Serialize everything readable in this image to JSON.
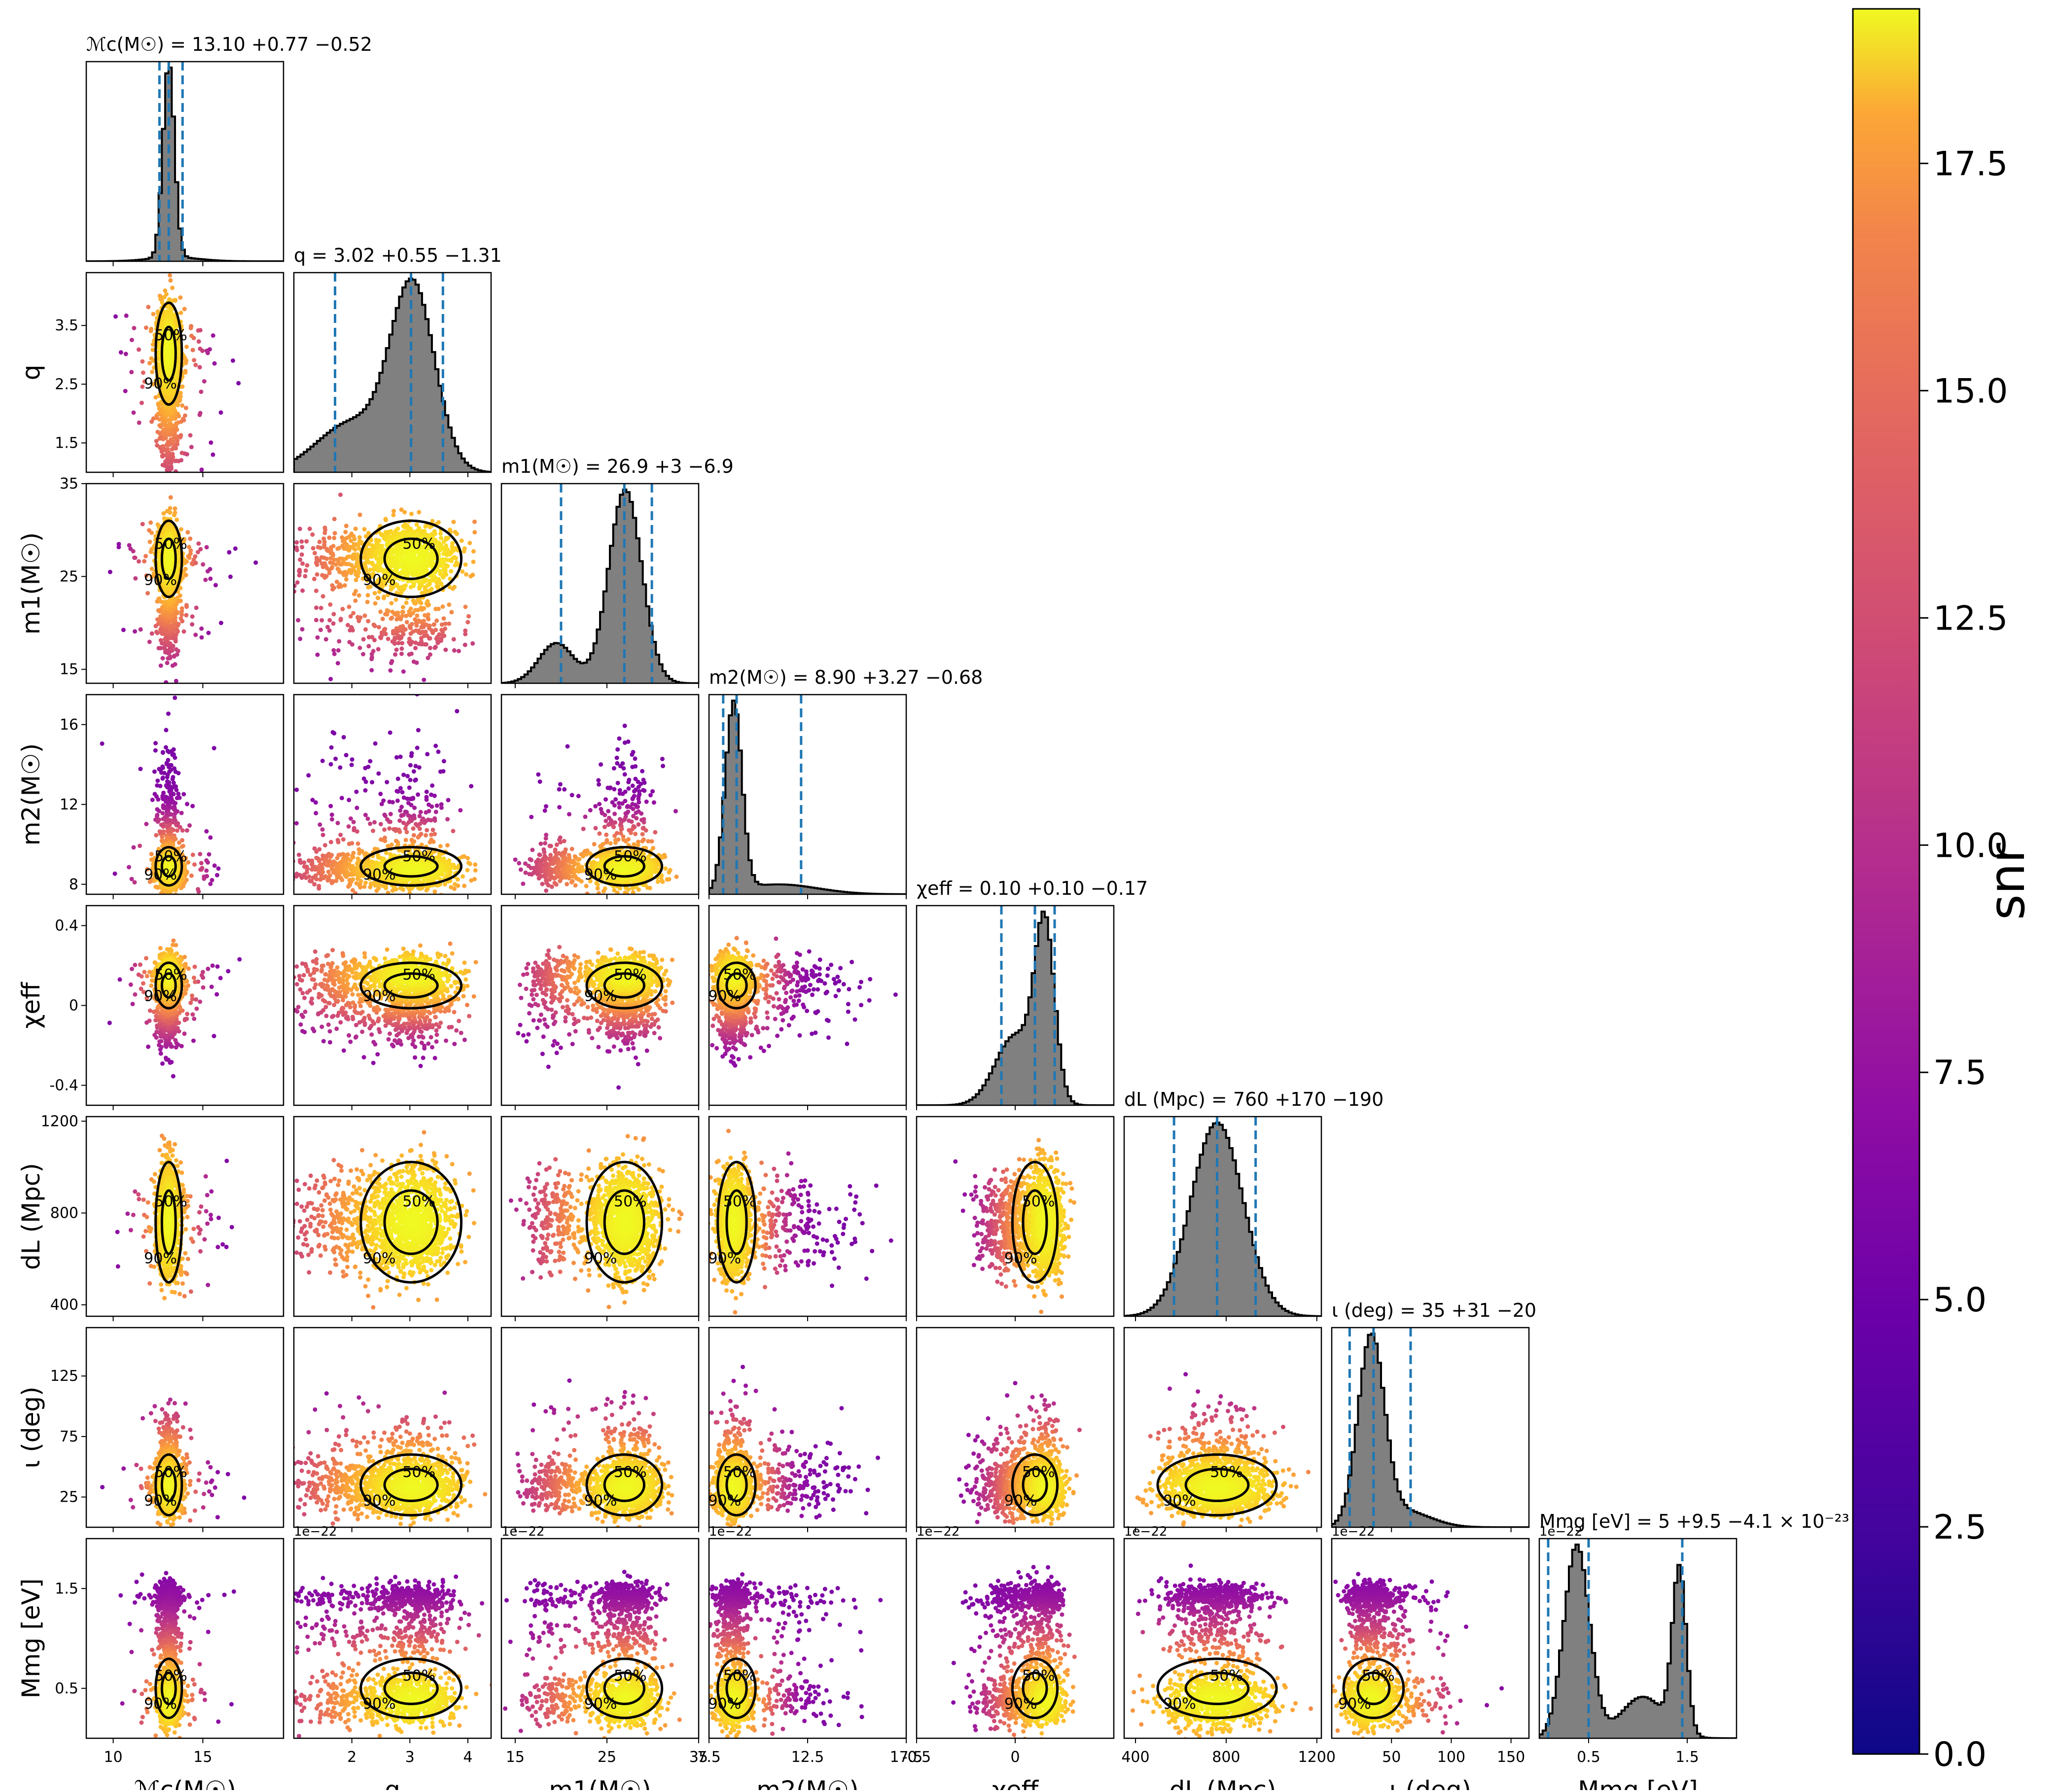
{
  "chart_data": {
    "type": "corner-plot",
    "parameters": [
      {
        "key": "mc",
        "label": "ℳc(M☉)",
        "range": [
          8.5,
          19.5
        ],
        "ticks": [
          10,
          15
        ],
        "title": "ℳc(M☉) = 13.10 +0.77 −0.52",
        "median": 13.1,
        "lo": 12.58,
        "hi": 13.87
      },
      {
        "key": "q",
        "label": "q",
        "range": [
          1.0,
          4.4
        ],
        "ticks": [
          2,
          3,
          4
        ],
        "ticks_left": [
          1.5,
          2.5,
          3.5
        ],
        "title": "q = 3.02 +0.55 −1.31",
        "median": 3.02,
        "lo": 1.71,
        "hi": 3.57
      },
      {
        "key": "m1",
        "label": "m1(M☉)",
        "range": [
          13.5,
          35
        ],
        "ticks": [
          15,
          25,
          35
        ],
        "title": "m1(M☉) = 26.9 +3 −6.9",
        "median": 26.9,
        "lo": 20.0,
        "hi": 29.9
      },
      {
        "key": "m2",
        "label": "m2(M☉)",
        "range": [
          7.5,
          17.5
        ],
        "ticks": [
          7.5,
          12.5,
          17.5
        ],
        "ticks_left": [
          8,
          12,
          16
        ],
        "title": "m2(M☉) = 8.90 +3.27 −0.68",
        "median": 8.9,
        "lo": 8.22,
        "hi": 12.17
      },
      {
        "key": "chi",
        "label": "χeff",
        "range": [
          -0.5,
          0.5
        ],
        "ticks": [
          -0.5,
          0.0
        ],
        "ticks_left": [
          -0.4,
          0.0,
          0.4
        ],
        "title": "χeff = 0.10 +0.10 −0.17",
        "median": 0.1,
        "lo": -0.07,
        "hi": 0.2
      },
      {
        "key": "dl",
        "label": "dL (Mpc)",
        "range": [
          350,
          1220
        ],
        "ticks": [
          400,
          800,
          1200
        ],
        "title": "dL (Mpc) = 760 +170 −190",
        "median": 760,
        "lo": 570,
        "hi": 930
      },
      {
        "key": "iota",
        "label": "ι (deg)",
        "range": [
          0,
          165
        ],
        "ticks": [
          50,
          100,
          150
        ],
        "ticks_left": [
          25,
          75,
          125
        ],
        "title": "ι (deg) = 35 +31 −20",
        "median": 35,
        "lo": 15,
        "hi": 66
      },
      {
        "key": "mmg",
        "label": "Mmg [eV]",
        "range": [
          0,
          2.0
        ],
        "ticks": [
          0.5,
          1.5
        ],
        "title": "Mmg [eV] = 5 +9.5 −4.1 × 10⁻²³",
        "median": 0.5,
        "lo": 0.09,
        "hi": 1.45,
        "offset": "1e−22"
      }
    ],
    "histograms": {
      "mc": {
        "bins": 60,
        "components": [
          {
            "w": 0.92,
            "mu": 13.1,
            "sd": 0.32
          },
          {
            "w": 0.08,
            "mu": 13.4,
            "sd": 1.4
          }
        ]
      },
      "q": {
        "bins": 60,
        "components": [
          {
            "w": 0.7,
            "mu": 3.05,
            "sd": 0.38
          },
          {
            "w": 0.3,
            "mu": 2.0,
            "sd": 0.6
          }
        ]
      },
      "m1": {
        "bins": 60,
        "components": [
          {
            "w": 0.82,
            "mu": 27.0,
            "sd": 1.8
          },
          {
            "w": 0.18,
            "mu": 19.5,
            "sd": 1.9
          }
        ]
      },
      "m2": {
        "bins": 60,
        "components": [
          {
            "w": 0.8,
            "mu": 8.75,
            "sd": 0.42
          },
          {
            "w": 0.2,
            "mu": 11.0,
            "sd": 2.0
          }
        ]
      },
      "chi": {
        "bins": 60,
        "components": [
          {
            "w": 0.55,
            "mu": 0.15,
            "sd": 0.05
          },
          {
            "w": 0.45,
            "mu": 0.0,
            "sd": 0.1
          }
        ]
      },
      "dl": {
        "bins": 60,
        "components": [
          {
            "w": 1.0,
            "mu": 760,
            "sd": 115
          }
        ]
      },
      "iota": {
        "bins": 60,
        "components": [
          {
            "w": 0.85,
            "mu": 33,
            "sd": 11
          },
          {
            "w": 0.15,
            "mu": 60,
            "sd": 22
          }
        ]
      },
      "mmg": {
        "bins": 60,
        "components": [
          {
            "w": 0.55,
            "mu": 0.38,
            "sd": 0.13
          },
          {
            "w": 0.25,
            "mu": 1.42,
            "sd": 0.07
          },
          {
            "w": 0.2,
            "mu": 1.05,
            "sd": 0.22
          }
        ]
      }
    },
    "contour_levels": [
      "50%",
      "90%"
    ],
    "colorbar": {
      "label": "snr",
      "range": [
        0.0,
        19.2
      ],
      "ticks": [
        0.0,
        2.5,
        5.0,
        7.5,
        10.0,
        12.5,
        15.0,
        17.5
      ],
      "tick_labels": [
        "0.0",
        "2.5",
        "5.0",
        "7.5",
        "10.0",
        "12.5",
        "15.0",
        "17.5"
      ],
      "colormap": "plasma"
    },
    "offset_text": "1e−22",
    "hist_color": "#808080",
    "interval_line_color": "#1f77b4",
    "contour_color": "#000000"
  }
}
